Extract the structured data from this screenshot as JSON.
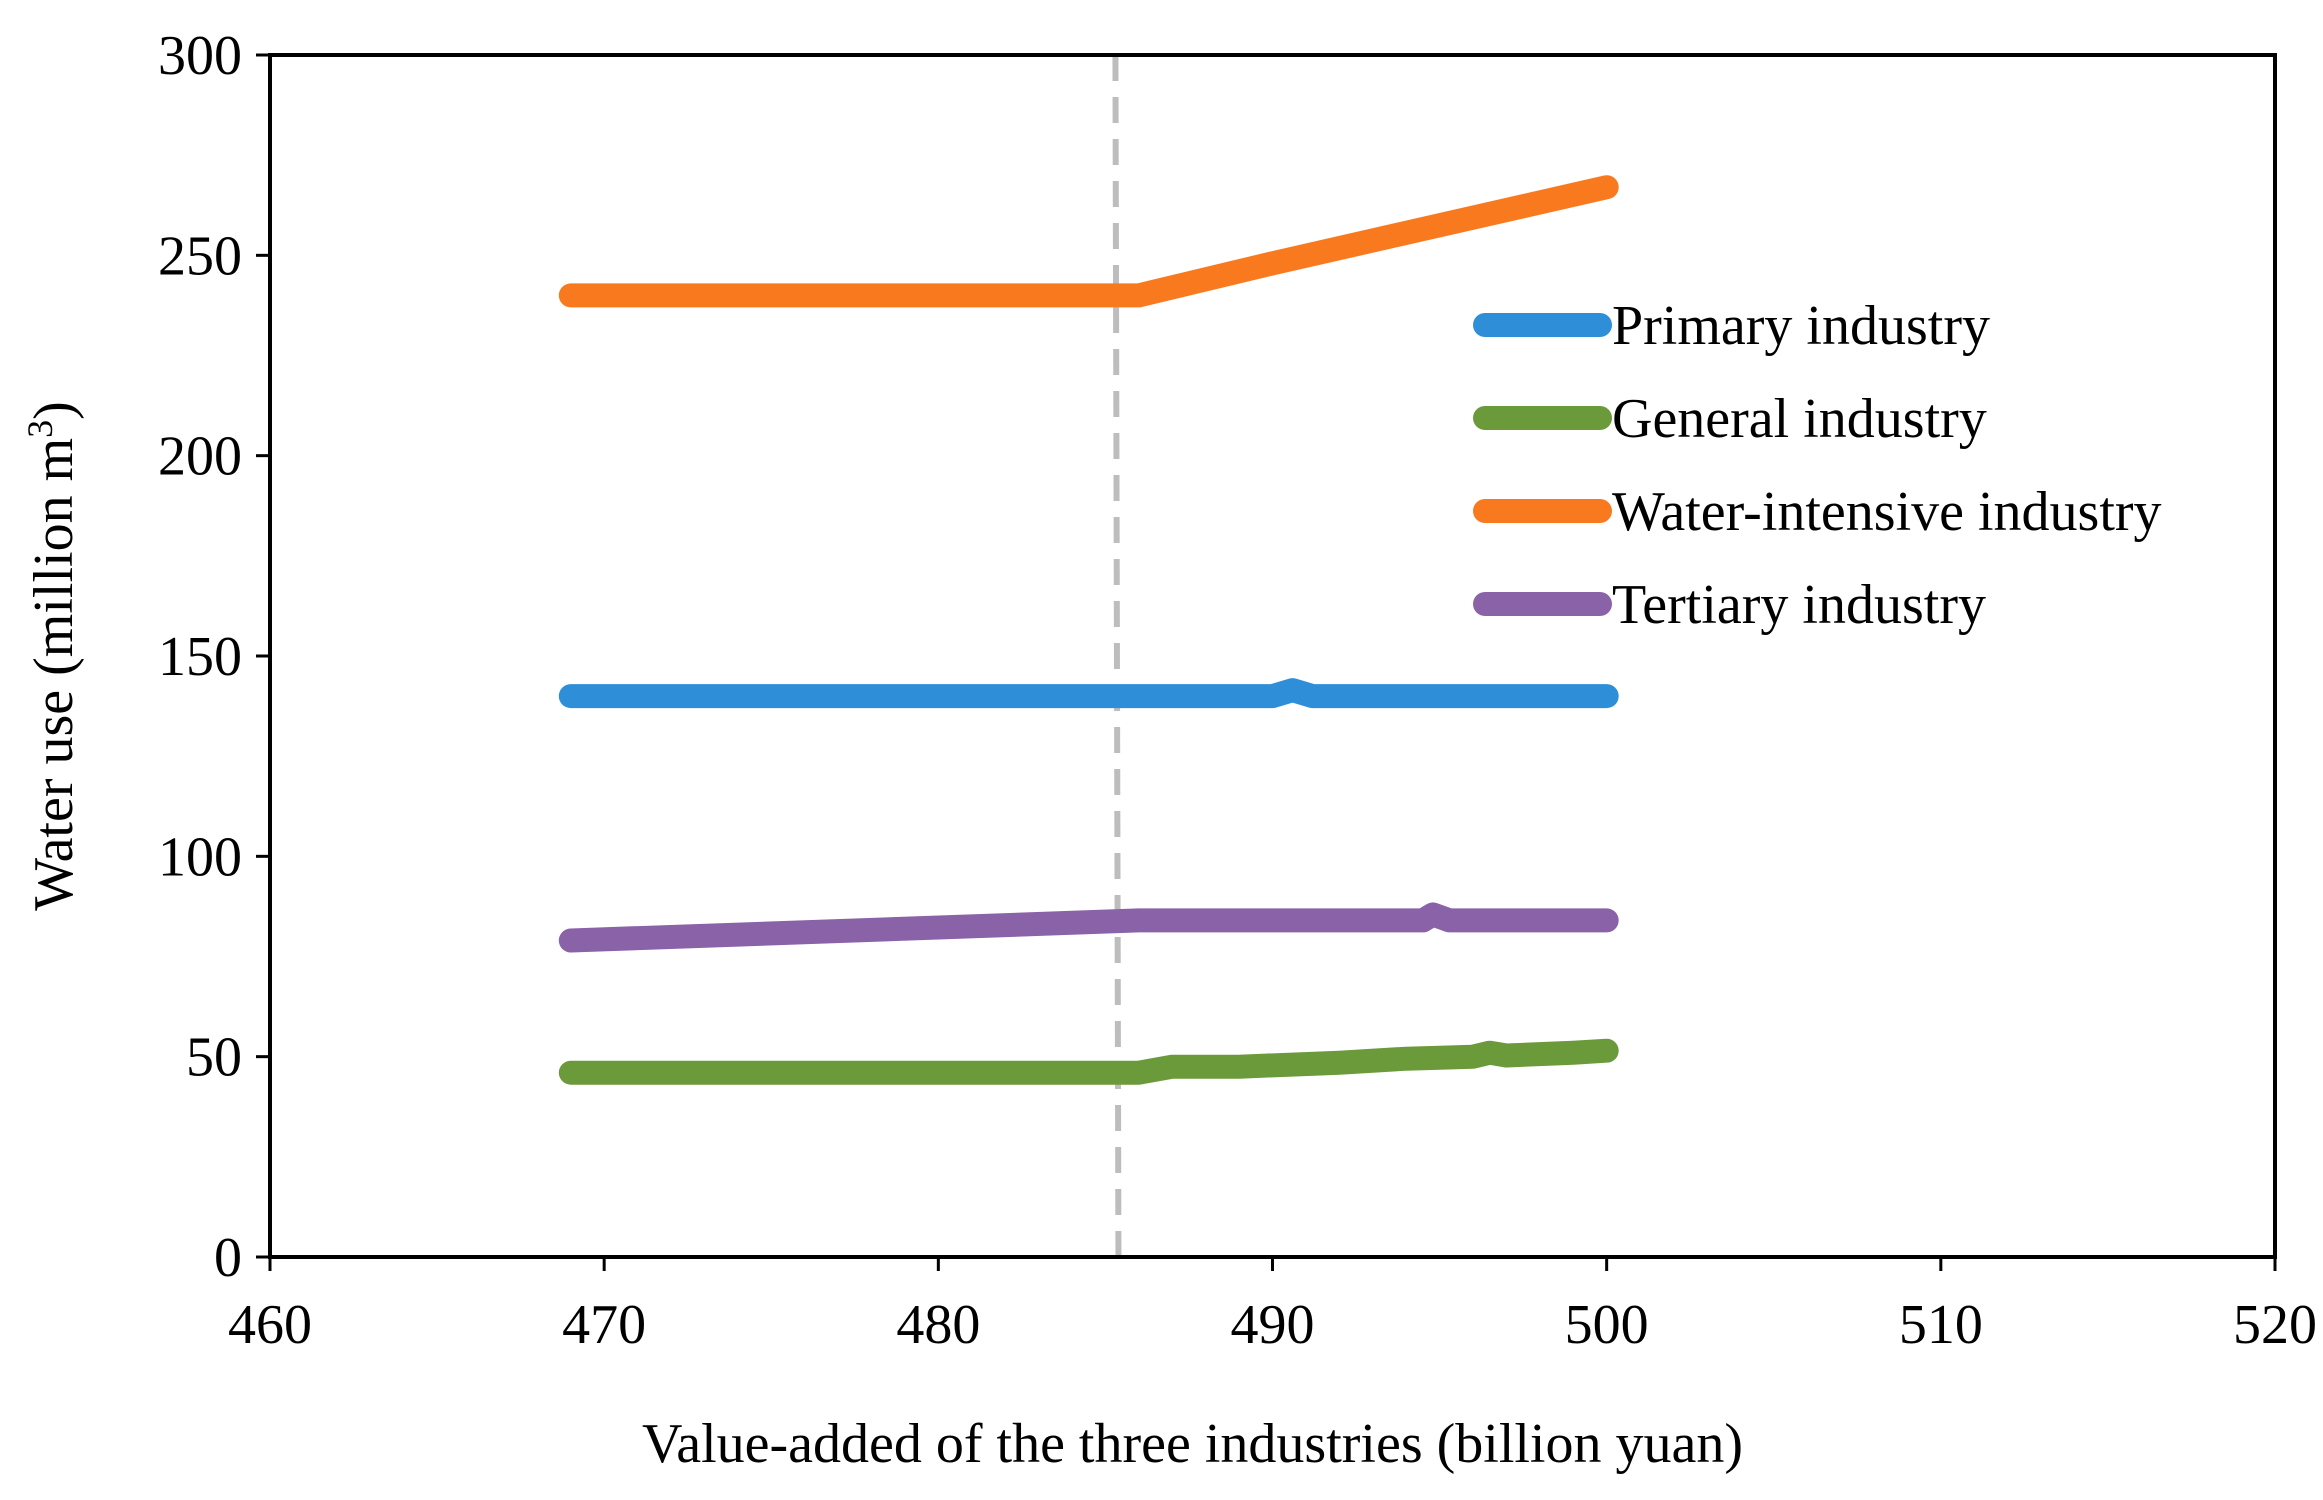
{
  "chart_data": {
    "type": "line",
    "xlabel": "Value-added of the three industries (billion yuan)",
    "ylabel_main": "Water use  (million m",
    "ylabel_sup": "3",
    "ylabel_close": ")",
    "xlim": [
      460,
      520
    ],
    "ylim": [
      0,
      300
    ],
    "xticks": [
      "460",
      "470",
      "480",
      "490",
      "500",
      "510",
      "520"
    ],
    "yticks": [
      "0",
      "50",
      "100",
      "150",
      "200",
      "250",
      "300"
    ],
    "reference_line_x": 485.3,
    "legend_position": "top-right",
    "series": [
      {
        "name": "Primary industry",
        "color": "#2E8FD8",
        "points": [
          [
            469,
            140
          ],
          [
            490,
            140
          ],
          [
            490.6,
            141.5
          ],
          [
            491.2,
            140
          ],
          [
            500,
            140
          ]
        ]
      },
      {
        "name": "General industry",
        "color": "#6A9A3A",
        "points": [
          [
            469,
            46
          ],
          [
            486,
            46
          ],
          [
            487,
            47.5
          ],
          [
            489,
            47.5
          ],
          [
            492,
            48.5
          ],
          [
            494,
            49.5
          ],
          [
            496,
            50
          ],
          [
            496.5,
            51
          ],
          [
            497,
            50.3
          ],
          [
            499,
            51
          ],
          [
            500,
            51.5
          ]
        ]
      },
      {
        "name": "Water-intensive industry",
        "color": "#F97A1E",
        "points": [
          [
            469,
            240
          ],
          [
            486,
            240
          ],
          [
            490,
            248
          ],
          [
            500,
            267
          ]
        ]
      },
      {
        "name": "Tertiary industry",
        "color": "#8A62A8",
        "points": [
          [
            469,
            79
          ],
          [
            486,
            84
          ],
          [
            494.5,
            84
          ],
          [
            494.8,
            85.5
          ],
          [
            495.3,
            84
          ],
          [
            500,
            84
          ]
        ]
      }
    ]
  }
}
